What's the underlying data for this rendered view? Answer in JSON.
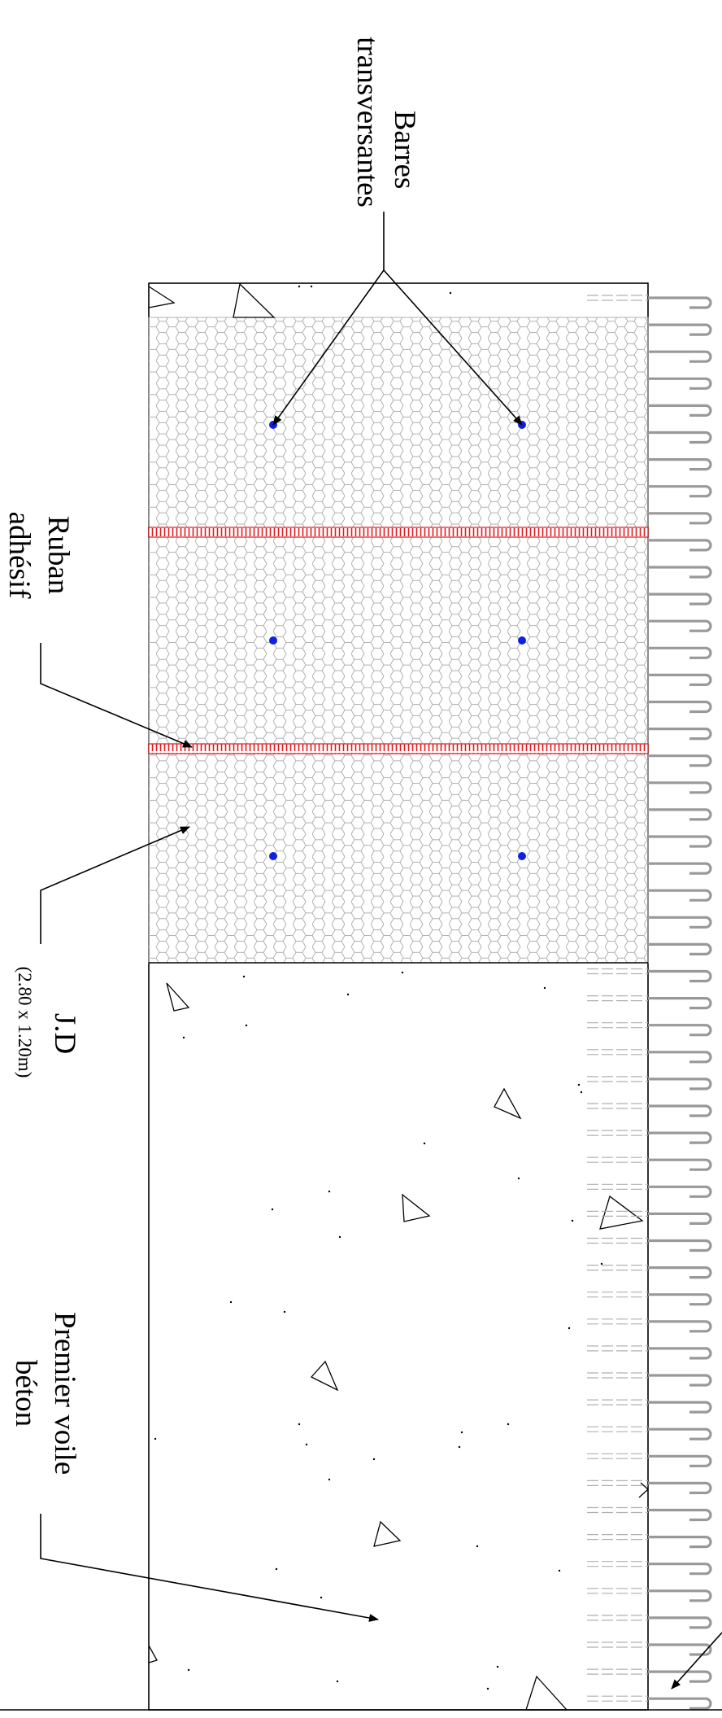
{
  "labels": {
    "bars_line1": "Barres",
    "bars_line2": "transversantes",
    "tape_line1": "Ruban",
    "tape_line2": "adhésif",
    "jd_line1": "J.D",
    "jd_line2": "(2.80 x 1.20m)",
    "wall_line1": "Premier voile",
    "wall_line2": "béton"
  },
  "colors": {
    "outline": "#000000",
    "mesh": "#b0b0b0",
    "tape": "#e0191e",
    "bar_dot": "#1020e0",
    "hook": "#999999"
  },
  "icons": {
    "bar_section": "circle-dot",
    "aggregate": "triangle-outline",
    "connector": "hook-shape"
  }
}
